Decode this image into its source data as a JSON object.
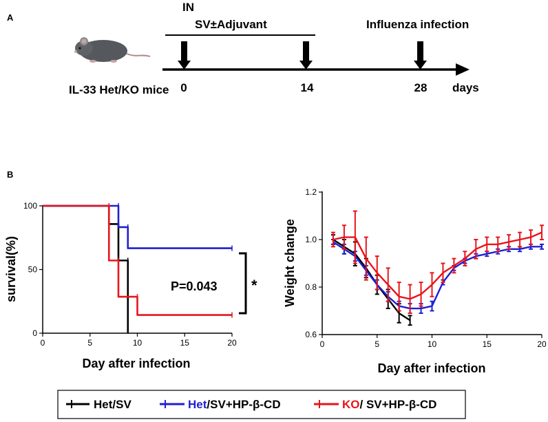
{
  "panel_a": {
    "label": "A",
    "route": "IN",
    "treatment": "SV±Adjuvant",
    "challenge": "Influenza infection",
    "subjects": "IL-33 Het/KO mice",
    "days": [
      "0",
      "14",
      "28"
    ],
    "unit": "days"
  },
  "panel_b": {
    "label": "B",
    "p_value": "P=0.043",
    "significance": "*"
  },
  "legend": {
    "items": [
      {
        "prefix": "Het/SV",
        "suffix": "",
        "color": "#000000",
        "prefix_color": "#000000"
      },
      {
        "prefix": "Het",
        "suffix": "/SV+HP-β-CD",
        "color": "#1f1fd0",
        "prefix_color": "#1f1fd0"
      },
      {
        "prefix": "KO",
        "suffix": "/ SV+HP-β-CD",
        "color": "#e8141b",
        "prefix_color": "#e8141b"
      }
    ]
  },
  "chart_data": [
    {
      "type": "line",
      "subtype": "step",
      "title": "",
      "xlabel": "Day after infection",
      "ylabel": "survival(%)",
      "xlim": [
        0,
        20
      ],
      "ylim": [
        0,
        100
      ],
      "xticks": [
        0,
        5,
        10,
        15,
        20
      ],
      "yticks": [
        0,
        50,
        100
      ],
      "series": [
        {
          "name": "Het/SV",
          "color": "#000000",
          "x": [
            0,
            7,
            8,
            9
          ],
          "y": [
            100,
            85.7,
            57.1,
            0
          ]
        },
        {
          "name": "Het/SV+HP-β-CD",
          "color": "#1f1fd0",
          "x": [
            0,
            8,
            9,
            20
          ],
          "y": [
            100,
            83.3,
            66.7,
            66.7
          ]
        },
        {
          "name": "KO/ SV+HP-β-CD",
          "color": "#e8141b",
          "x": [
            0,
            7,
            8,
            10,
            20
          ],
          "y": [
            100,
            57.1,
            28.6,
            14.3,
            14.3
          ]
        }
      ]
    },
    {
      "type": "line",
      "title": "",
      "xlabel": "Day after infection",
      "ylabel": "Weight change",
      "xlim": [
        0,
        20
      ],
      "ylim": [
        0.6,
        1.2
      ],
      "xticks": [
        0,
        5,
        10,
        15,
        20
      ],
      "yticks": [
        0.6,
        0.8,
        1.0,
        1.2
      ],
      "ytick_labels": [
        "0.6",
        "0.8",
        "1.0",
        "1.2"
      ],
      "series": [
        {
          "name": "Het/SV",
          "color": "#000000",
          "x": [
            1,
            2,
            3,
            4,
            5,
            6,
            7,
            8
          ],
          "y": [
            1.0,
            0.97,
            0.94,
            0.88,
            0.81,
            0.75,
            0.69,
            0.66
          ],
          "err": [
            0.02,
            0.03,
            0.05,
            0.04,
            0.04,
            0.04,
            0.04,
            0.02
          ]
        },
        {
          "name": "Het/SV+HP-β-CD",
          "color": "#1f1fd0",
          "x": [
            1,
            2,
            3,
            4,
            5,
            6,
            7,
            8,
            9,
            10,
            11,
            12,
            13,
            14,
            15,
            16,
            17,
            18,
            19,
            20
          ],
          "y": [
            0.99,
            0.96,
            0.93,
            0.87,
            0.81,
            0.76,
            0.72,
            0.71,
            0.71,
            0.72,
            0.82,
            0.88,
            0.91,
            0.93,
            0.94,
            0.95,
            0.96,
            0.96,
            0.97,
            0.97
          ],
          "err": [
            0.01,
            0.02,
            0.02,
            0.02,
            0.02,
            0.02,
            0.02,
            0.02,
            0.02,
            0.02,
            0.01,
            0.01,
            0.01,
            0.01,
            0.01,
            0.01,
            0.01,
            0.01,
            0.01,
            0.01
          ]
        },
        {
          "name": "KO/ SV+HP-β-CD",
          "color": "#e8141b",
          "x": [
            1,
            2,
            3,
            4,
            5,
            6,
            7,
            8,
            9,
            10,
            11,
            12,
            13,
            14,
            15,
            16,
            17,
            18,
            19,
            20
          ],
          "y": [
            1.0,
            1.01,
            1.01,
            0.92,
            0.86,
            0.81,
            0.76,
            0.75,
            0.77,
            0.81,
            0.86,
            0.89,
            0.92,
            0.96,
            0.98,
            0.98,
            0.99,
            1.0,
            1.01,
            1.03
          ],
          "err": [
            0.03,
            0.05,
            0.11,
            0.09,
            0.07,
            0.07,
            0.06,
            0.06,
            0.05,
            0.05,
            0.04,
            0.03,
            0.03,
            0.04,
            0.03,
            0.03,
            0.03,
            0.03,
            0.03,
            0.03
          ]
        }
      ]
    }
  ]
}
